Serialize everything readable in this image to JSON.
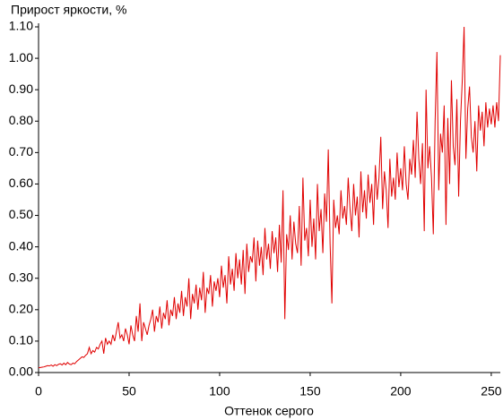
{
  "chart_data": {
    "type": "line",
    "y_label": "Прирост яркости, %",
    "x_label": "Оттенок серого",
    "x": [
      0,
      1,
      2,
      3,
      4,
      5,
      6,
      7,
      8,
      9,
      10,
      11,
      12,
      13,
      14,
      15,
      16,
      17,
      18,
      19,
      20,
      21,
      22,
      23,
      24,
      25,
      26,
      27,
      28,
      29,
      30,
      31,
      32,
      33,
      34,
      35,
      36,
      37,
      38,
      39,
      40,
      41,
      42,
      43,
      44,
      45,
      46,
      47,
      48,
      49,
      50,
      51,
      52,
      53,
      54,
      55,
      56,
      57,
      58,
      59,
      60,
      61,
      62,
      63,
      64,
      65,
      66,
      67,
      68,
      69,
      70,
      71,
      72,
      73,
      74,
      75,
      76,
      77,
      78,
      79,
      80,
      81,
      82,
      83,
      84,
      85,
      86,
      87,
      88,
      89,
      90,
      91,
      92,
      93,
      94,
      95,
      96,
      97,
      98,
      99,
      100,
      101,
      102,
      103,
      104,
      105,
      106,
      107,
      108,
      109,
      110,
      111,
      112,
      113,
      114,
      115,
      116,
      117,
      118,
      119,
      120,
      121,
      122,
      123,
      124,
      125,
      126,
      127,
      128,
      129,
      130,
      131,
      132,
      133,
      134,
      135,
      136,
      137,
      138,
      139,
      140,
      141,
      142,
      143,
      144,
      145,
      146,
      147,
      148,
      149,
      150,
      151,
      152,
      153,
      154,
      155,
      156,
      157,
      158,
      159,
      160,
      161,
      162,
      163,
      164,
      165,
      166,
      167,
      168,
      169,
      170,
      171,
      172,
      173,
      174,
      175,
      176,
      177,
      178,
      179,
      180,
      181,
      182,
      183,
      184,
      185,
      186,
      187,
      188,
      189,
      190,
      191,
      192,
      193,
      194,
      195,
      196,
      197,
      198,
      199,
      200,
      201,
      202,
      203,
      204,
      205,
      206,
      207,
      208,
      209,
      210,
      211,
      212,
      213,
      214,
      215,
      216,
      217,
      218,
      219,
      220,
      221,
      222,
      223,
      224,
      225,
      226,
      227,
      228,
      229,
      230,
      231,
      232,
      233,
      234,
      235,
      236,
      237,
      238,
      239,
      240,
      241,
      242,
      243,
      244,
      245,
      246,
      247,
      248,
      249,
      250,
      251,
      252,
      253,
      254,
      255
    ],
    "series": [
      {
        "color": "#e00000",
        "values": [
          0.015,
          0.016,
          0.017,
          0.018,
          0.02,
          0.022,
          0.021,
          0.024,
          0.02,
          0.025,
          0.022,
          0.026,
          0.028,
          0.024,
          0.03,
          0.025,
          0.032,
          0.027,
          0.025,
          0.03,
          0.028,
          0.035,
          0.04,
          0.045,
          0.05,
          0.048,
          0.055,
          0.06,
          0.08,
          0.06,
          0.07,
          0.065,
          0.08,
          0.075,
          0.09,
          0.1,
          0.06,
          0.11,
          0.09,
          0.1,
          0.09,
          0.12,
          0.1,
          0.13,
          0.16,
          0.11,
          0.12,
          0.1,
          0.14,
          0.12,
          0.09,
          0.15,
          0.12,
          0.1,
          0.18,
          0.13,
          0.22,
          0.1,
          0.16,
          0.14,
          0.12,
          0.15,
          0.17,
          0.2,
          0.13,
          0.18,
          0.16,
          0.21,
          0.14,
          0.19,
          0.17,
          0.23,
          0.15,
          0.2,
          0.18,
          0.24,
          0.17,
          0.22,
          0.19,
          0.26,
          0.18,
          0.24,
          0.21,
          0.3,
          0.17,
          0.25,
          0.22,
          0.28,
          0.2,
          0.27,
          0.23,
          0.32,
          0.19,
          0.27,
          0.25,
          0.31,
          0.21,
          0.29,
          0.26,
          0.3,
          0.24,
          0.34,
          0.27,
          0.31,
          0.22,
          0.37,
          0.28,
          0.33,
          0.26,
          0.38,
          0.3,
          0.36,
          0.28,
          0.39,
          0.25,
          0.41,
          0.32,
          0.37,
          0.35,
          0.43,
          0.29,
          0.42,
          0.34,
          0.4,
          0.31,
          0.46,
          0.36,
          0.41,
          0.33,
          0.45,
          0.38,
          0.43,
          0.32,
          0.47,
          0.35,
          0.58,
          0.17,
          0.44,
          0.39,
          0.5,
          0.36,
          0.48,
          0.41,
          0.38,
          0.53,
          0.34,
          0.62,
          0.42,
          0.46,
          0.37,
          0.55,
          0.4,
          0.49,
          0.36,
          0.6,
          0.45,
          0.52,
          0.38,
          0.57,
          0.48,
          0.71,
          0.41,
          0.22,
          0.55,
          0.46,
          0.5,
          0.44,
          0.58,
          0.49,
          0.53,
          0.47,
          0.62,
          0.52,
          0.45,
          0.6,
          0.5,
          0.56,
          0.43,
          0.64,
          0.51,
          0.58,
          0.49,
          0.63,
          0.54,
          0.6,
          0.47,
          0.66,
          0.55,
          0.62,
          0.75,
          0.52,
          0.64,
          0.58,
          0.46,
          0.68,
          0.56,
          0.62,
          0.55,
          0.7,
          0.59,
          0.65,
          0.58,
          0.72,
          0.6,
          0.55,
          0.68,
          0.63,
          0.74,
          0.62,
          0.83,
          0.68,
          0.6,
          0.73,
          0.45,
          0.9,
          0.65,
          0.72,
          0.62,
          0.44,
          0.8,
          1.02,
          0.58,
          0.76,
          0.7,
          0.85,
          0.47,
          0.81,
          0.6,
          0.93,
          0.72,
          0.66,
          0.87,
          0.56,
          0.8,
          0.93,
          1.1,
          0.68,
          0.84,
          0.91,
          0.75,
          0.7,
          0.8,
          0.64,
          0.85,
          0.77,
          0.83,
          0.72,
          0.86,
          0.78,
          0.84,
          0.79,
          0.85,
          0.78,
          0.86,
          0.8,
          1.01
        ]
      }
    ],
    "xlim": [
      0,
      255
    ],
    "ylim": [
      0,
      1.1
    ],
    "xticks": [
      0,
      50,
      100,
      150,
      200,
      250
    ],
    "yticks": [
      {
        "value": 0,
        "label": "0.00"
      },
      {
        "value": 0.1,
        "label": "0.10"
      },
      {
        "value": 0.2,
        "label": "0.20"
      },
      {
        "value": 0.3,
        "label": "0.30"
      },
      {
        "value": 0.4,
        "label": "0.40"
      },
      {
        "value": 0.5,
        "label": "0.50"
      },
      {
        "value": 0.6,
        "label": "0.60"
      },
      {
        "value": 0.7,
        "label": "0.70"
      },
      {
        "value": 0.8,
        "label": "0.80"
      },
      {
        "value": 0.9,
        "label": "0.90"
      },
      {
        "value": 1.0,
        "label": "1.00"
      },
      {
        "value": 1.1,
        "label": "1.10"
      }
    ]
  }
}
